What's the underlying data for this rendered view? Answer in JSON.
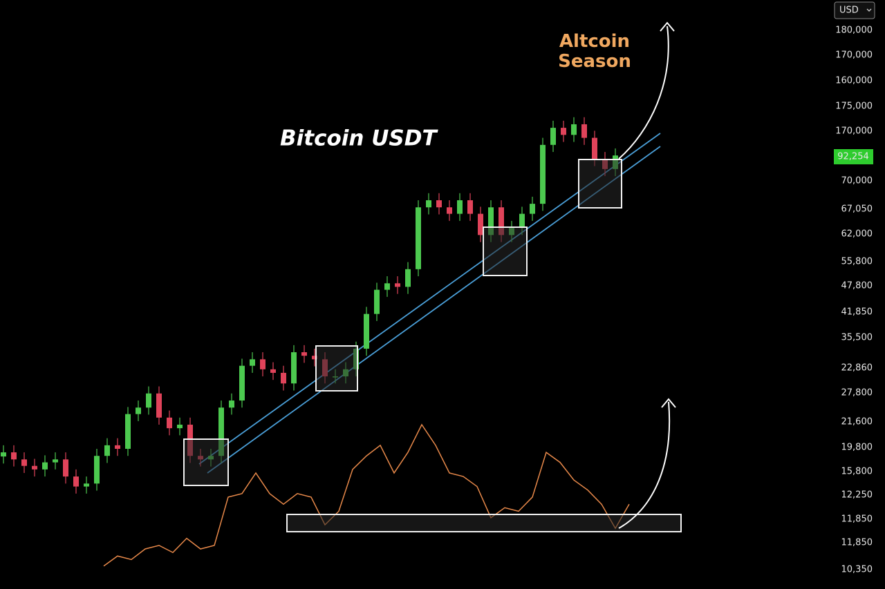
{
  "chart_data": {
    "type": "candlestick",
    "title": "Bitcoin USDT",
    "annotation": "Altcoin Season",
    "currency": "USD",
    "price_tag": "92,254",
    "axis_labels": [
      "180,000",
      "170,000",
      "160,000",
      "175,000",
      "170,000",
      "70,000",
      "67,050",
      "62,000",
      "55,800",
      "47,800",
      "41,850",
      "35,500",
      "22,860",
      "27,800",
      "21,600",
      "19,800",
      "15,800",
      "12,250",
      "11,850",
      "11,850",
      "10,350"
    ],
    "ylim": [
      0,
      100
    ],
    "up_color": "#4cc94f",
    "down_color": "#e0435a",
    "open": [
      22.5,
      23.2,
      22.0,
      20.9,
      20.3,
      21.5,
      22.0,
      19.1,
      17.4,
      17.9,
      22.6,
      24.4,
      23.8,
      29.7,
      30.8,
      33.2,
      29.1,
      27.3,
      27.9,
      22.6,
      22.0,
      22.6,
      30.8,
      32.0,
      37.9,
      39.0,
      37.3,
      36.7,
      34.9,
      40.2,
      39.6,
      39.0,
      36.1,
      36.1,
      37.3,
      40.8,
      46.7,
      50.8,
      51.9,
      51.3,
      54.3,
      64.8,
      66.0,
      64.8,
      63.7,
      66.0,
      63.7,
      60.1,
      64.8,
      60.1,
      61.3,
      63.7,
      65.4,
      75.4,
      78.3,
      77.1,
      78.9,
      76.6,
      73.0,
      71.3
    ],
    "high": [
      24.4,
      24.4,
      23.2,
      22.1,
      22.7,
      23.2,
      23.2,
      20.3,
      19.1,
      23.8,
      25.6,
      25.6,
      30.9,
      32.0,
      34.4,
      34.4,
      30.3,
      29.1,
      29.1,
      23.8,
      23.8,
      32.0,
      33.2,
      39.1,
      40.2,
      40.2,
      38.5,
      37.9,
      41.4,
      41.4,
      40.8,
      40.2,
      37.3,
      38.5,
      42.0,
      47.9,
      52.0,
      53.1,
      53.1,
      55.5,
      66.0,
      67.2,
      67.2,
      66.0,
      67.2,
      67.2,
      64.9,
      66.0,
      66.0,
      62.5,
      64.9,
      66.6,
      76.6,
      79.5,
      79.5,
      80.1,
      80.1,
      77.8,
      74.2,
      74.8
    ],
    "low": [
      21.3,
      20.8,
      19.7,
      19.1,
      19.1,
      20.3,
      17.9,
      16.2,
      16.2,
      16.7,
      21.4,
      22.6,
      22.6,
      28.5,
      29.6,
      27.9,
      26.1,
      26.1,
      21.4,
      20.8,
      20.8,
      21.4,
      29.6,
      30.8,
      36.7,
      36.1,
      35.5,
      33.7,
      33.7,
      38.4,
      37.8,
      34.9,
      34.9,
      34.9,
      36.1,
      39.6,
      45.5,
      49.6,
      50.1,
      50.1,
      53.1,
      63.6,
      63.6,
      62.5,
      62.5,
      62.5,
      58.9,
      58.9,
      58.9,
      58.9,
      60.1,
      62.5,
      64.2,
      74.2,
      75.9,
      75.9,
      75.4,
      71.8,
      70.1,
      70.1
    ],
    "close": [
      23.2,
      22.0,
      20.9,
      20.3,
      21.5,
      22.0,
      19.1,
      17.4,
      17.9,
      22.6,
      24.4,
      23.8,
      29.7,
      30.8,
      33.2,
      29.1,
      27.3,
      27.9,
      22.6,
      22.0,
      22.6,
      30.8,
      32.0,
      37.9,
      39.0,
      37.3,
      36.7,
      34.9,
      40.2,
      39.6,
      39.0,
      36.1,
      36.1,
      37.3,
      40.8,
      46.7,
      50.8,
      51.9,
      51.3,
      54.3,
      64.8,
      66.0,
      64.8,
      63.7,
      66.0,
      63.7,
      60.1,
      64.8,
      60.1,
      61.3,
      63.7,
      65.4,
      75.4,
      78.3,
      77.1,
      78.9,
      76.6,
      73.0,
      71.3,
      73.6
    ],
    "oscillator": {
      "color": "#e8894a",
      "values": [
        3.9,
        5.6,
        5.0,
        6.8,
        7.4,
        6.2,
        8.6,
        6.8,
        7.4,
        15.6,
        16.2,
        19.7,
        16.2,
        14.4,
        16.2,
        15.6,
        10.9,
        13.2,
        20.3,
        22.6,
        24.4,
        19.7,
        23.2,
        27.9,
        24.4,
        19.7,
        19.1,
        17.4,
        12.1,
        13.8,
        13.2,
        15.6,
        23.2,
        21.5,
        18.5,
        16.8,
        14.4,
        10.3,
        14.4
      ]
    }
  }
}
